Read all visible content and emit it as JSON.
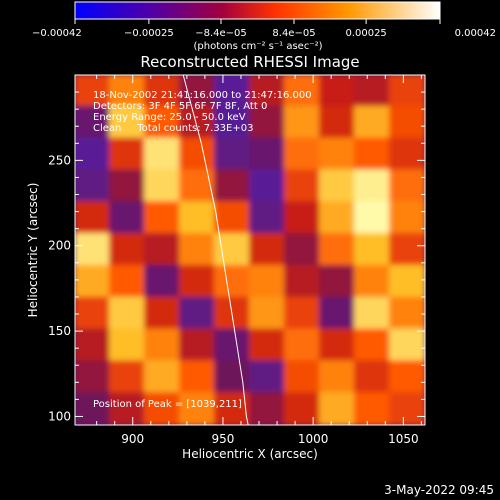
{
  "chart_data": {
    "type": "heatmap",
    "title": "Reconstructed RHESSI Image",
    "xlabel": "Heliocentric X (arcsec)",
    "ylabel": "Heliocentric Y (arcsec)",
    "xlim": [
      868,
      1062
    ],
    "ylim": [
      95,
      300
    ],
    "x_ticks": [
      900,
      950,
      1000,
      1050
    ],
    "x_tick_labels": [
      "900",
      "950",
      "1000",
      "1050"
    ],
    "y_ticks": [
      100,
      150,
      200,
      250
    ],
    "y_tick_labels": [
      "100",
      "150",
      "200",
      "250"
    ],
    "colorbar": {
      "min": -0.00042,
      "max": 0.00042,
      "unit": "(photons cm⁻² s⁻¹ asec⁻²)",
      "ticks": [
        -0.00042,
        -0.00025,
        -8.4e-05,
        8.4e-05,
        0.00025,
        0.00042
      ],
      "tick_labels": [
        "−0.00042",
        "−0.00025",
        "−8.4e−05",
        "8.4e−05",
        "0.00025",
        "0.00042"
      ],
      "colors": [
        "#0000ff",
        "#5500a0",
        "#b00030",
        "#ff4400",
        "#ff9900",
        "#ffffff"
      ]
    },
    "annotations": [
      "18-Nov-2002 21:41:16.000 to 21:47:16.000",
      "Detectors: 3F 4F 5F 6F 7F 8F, Att 0",
      "Energy Range: 25.0 - 50.0 keV",
      "Clean     Total counts: 7.33E+03"
    ],
    "peak_label": "Position of Peak = [1039,211]",
    "peak": [
      1039,
      211
    ],
    "limb_curve": [
      [
        928,
        300
      ],
      [
        933,
        280
      ],
      [
        938,
        260
      ],
      [
        942,
        240
      ],
      [
        946,
        220
      ],
      [
        949,
        200
      ],
      [
        952,
        180
      ],
      [
        955,
        160
      ],
      [
        958,
        140
      ],
      [
        961,
        120
      ],
      [
        963,
        100
      ],
      [
        964,
        95
      ]
    ],
    "image_grid": {
      "cols": 10,
      "rows": 11,
      "x0": 868,
      "dx": 19.4,
      "y0": 95,
      "dy": 18.64,
      "values_top_to_bottom": [
        [
          0.4,
          0.6,
          0.35,
          0.1,
          -0.3,
          0.2,
          0.55,
          0.25,
          0.2,
          0.4
        ],
        [
          -0.1,
          0.8,
          0.5,
          0.2,
          -0.4,
          0.1,
          0.65,
          0.3,
          0.7,
          0.45
        ],
        [
          -0.3,
          0.35,
          0.9,
          0.45,
          -0.2,
          -0.1,
          0.55,
          0.6,
          0.5,
          0.35
        ],
        [
          -0.2,
          0.1,
          0.85,
          0.55,
          0.1,
          -0.3,
          0.4,
          0.8,
          0.95,
          0.55
        ],
        [
          0.3,
          -0.1,
          0.5,
          0.75,
          0.45,
          -0.2,
          0.25,
          0.7,
          1.0,
          0.6
        ],
        [
          0.9,
          0.3,
          0.2,
          0.6,
          0.8,
          0.3,
          0.1,
          0.55,
          0.75,
          0.4
        ],
        [
          0.7,
          0.5,
          -0.1,
          0.3,
          0.55,
          0.6,
          0.2,
          0.1,
          0.6,
          0.75
        ],
        [
          0.4,
          0.8,
          0.3,
          -0.2,
          0.35,
          0.65,
          0.4,
          -0.1,
          0.85,
          0.6
        ],
        [
          0.2,
          0.75,
          0.6,
          0.2,
          -0.1,
          0.3,
          0.55,
          0.3,
          0.5,
          0.85
        ],
        [
          0.1,
          0.4,
          0.7,
          0.5,
          0.0,
          -0.2,
          0.45,
          0.6,
          0.35,
          0.5
        ],
        [
          0.0,
          0.2,
          0.45,
          0.6,
          0.3,
          0.1,
          0.3,
          0.7,
          0.5,
          0.4
        ]
      ]
    }
  },
  "footer": {
    "date": "3-May-2022 09:45"
  }
}
